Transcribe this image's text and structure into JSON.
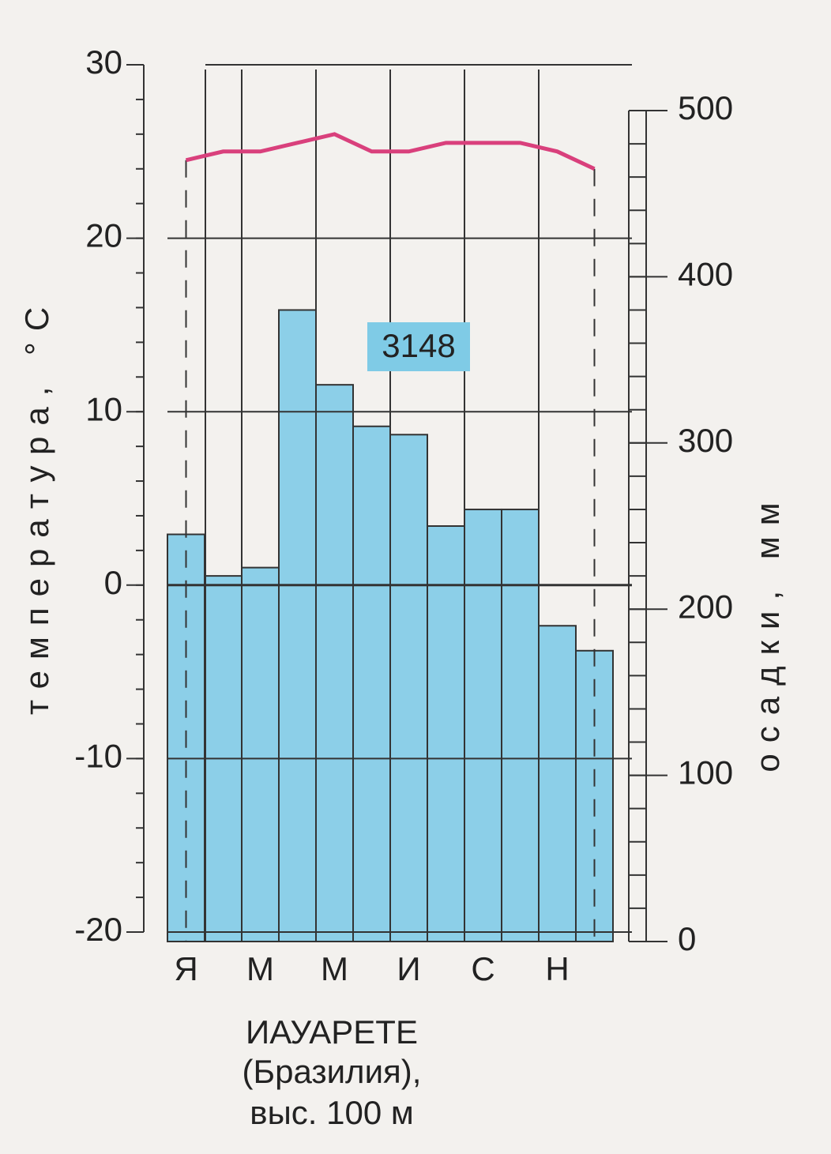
{
  "chart_data": {
    "type": "climate",
    "title": "ИАУАРЕТЕ",
    "subtitle": "(Бразилия),",
    "note": "выс. 100 м",
    "annotation": "3148",
    "ylabel": "температура, °С",
    "y2label": "осадки, мм",
    "categories": [
      "Я",
      null,
      "М",
      null,
      "М",
      null,
      "И",
      null,
      "С",
      null,
      "Н",
      null
    ],
    "series": [
      {
        "type": "bar",
        "axis": "y2",
        "color": "#8ccfe8",
        "values": [
          245,
          220,
          225,
          380,
          335,
          310,
          305,
          250,
          260,
          260,
          190,
          175
        ]
      },
      {
        "type": "line",
        "color": "#d9407c",
        "values": [
          24.5,
          25,
          25,
          25.5,
          26,
          25,
          25,
          25.5,
          25.5,
          25.5,
          25,
          24
        ]
      }
    ],
    "ylim": [
      -20,
      30
    ],
    "yticks": [
      -20,
      -10,
      0,
      10,
      20,
      30
    ],
    "y2lim": [
      0,
      500
    ],
    "y2ticks": [
      0,
      100,
      200,
      300,
      400,
      500
    ],
    "grid": true
  }
}
